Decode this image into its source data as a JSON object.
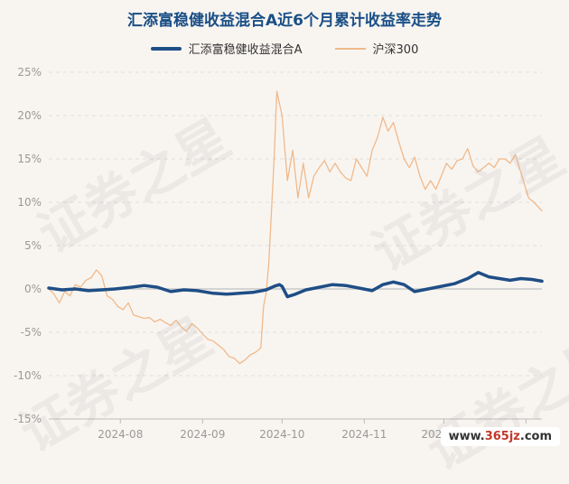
{
  "chart_data": {
    "type": "line",
    "title": "汇添富稳健收益混合A近6个月累计收益率走势",
    "xlabel": "",
    "ylabel": "",
    "ylim": [
      -15,
      25
    ],
    "yticks": [
      25,
      20,
      15,
      10,
      5,
      0,
      -5,
      -10,
      -15
    ],
    "ytick_labels": [
      "25%",
      "20%",
      "15%",
      "10%",
      "5%",
      "0%",
      "-5%",
      "-10%",
      "-15%"
    ],
    "xticks": [
      {
        "date": "2024-08-01",
        "label": "2024-08"
      },
      {
        "date": "2024-09-01",
        "label": "2024-09"
      },
      {
        "date": "2024-10-01",
        "label": "2024-10"
      },
      {
        "date": "2024-11-01",
        "label": "2024-11"
      },
      {
        "date": "2024-12-01",
        "label": "2024-12"
      },
      {
        "date": "2025-01-01",
        "label": "2025-01"
      }
    ],
    "x_range": [
      "2024-07-05",
      "2025-01-07"
    ],
    "grid": "horizontal dashed",
    "legend_position": "top-center",
    "series": [
      {
        "name": "汇添富稳健收益混合A",
        "color": "#1f4e86",
        "points": [
          [
            "2024-07-05",
            0.1
          ],
          [
            "2024-07-10",
            -0.1
          ],
          [
            "2024-07-15",
            0.0
          ],
          [
            "2024-07-20",
            -0.2
          ],
          [
            "2024-07-25",
            -0.1
          ],
          [
            "2024-07-30",
            0.0
          ],
          [
            "2024-08-05",
            0.2
          ],
          [
            "2024-08-10",
            0.4
          ],
          [
            "2024-08-15",
            0.2
          ],
          [
            "2024-08-20",
            -0.3
          ],
          [
            "2024-08-25",
            -0.1
          ],
          [
            "2024-08-30",
            -0.2
          ],
          [
            "2024-09-05",
            -0.5
          ],
          [
            "2024-09-10",
            -0.6
          ],
          [
            "2024-09-15",
            -0.5
          ],
          [
            "2024-09-20",
            -0.4
          ],
          [
            "2024-09-25",
            -0.1
          ],
          [
            "2024-09-28",
            0.3
          ],
          [
            "2024-09-30",
            0.5
          ],
          [
            "2024-10-01",
            0.3
          ],
          [
            "2024-10-03",
            -0.9
          ],
          [
            "2024-10-06",
            -0.6
          ],
          [
            "2024-10-10",
            -0.1
          ],
          [
            "2024-10-15",
            0.2
          ],
          [
            "2024-10-20",
            0.5
          ],
          [
            "2024-10-25",
            0.4
          ],
          [
            "2024-10-30",
            0.1
          ],
          [
            "2024-11-04",
            -0.2
          ],
          [
            "2024-11-08",
            0.5
          ],
          [
            "2024-11-12",
            0.8
          ],
          [
            "2024-11-16",
            0.5
          ],
          [
            "2024-11-20",
            -0.3
          ],
          [
            "2024-11-25",
            0.0
          ],
          [
            "2024-11-30",
            0.3
          ],
          [
            "2024-12-05",
            0.6
          ],
          [
            "2024-12-10",
            1.2
          ],
          [
            "2024-12-14",
            1.9
          ],
          [
            "2024-12-18",
            1.4
          ],
          [
            "2024-12-22",
            1.2
          ],
          [
            "2024-12-26",
            1.0
          ],
          [
            "2024-12-30",
            1.2
          ],
          [
            "2025-01-03",
            1.1
          ],
          [
            "2025-01-07",
            0.9
          ]
        ]
      },
      {
        "name": "沪深300",
        "color": "#f1b98a",
        "points": [
          [
            "2024-07-05",
            0.0
          ],
          [
            "2024-07-07",
            -0.6
          ],
          [
            "2024-07-09",
            -1.6
          ],
          [
            "2024-07-11",
            -0.3
          ],
          [
            "2024-07-13",
            -0.8
          ],
          [
            "2024-07-15",
            0.5
          ],
          [
            "2024-07-17",
            0.2
          ],
          [
            "2024-07-19",
            1.0
          ],
          [
            "2024-07-21",
            1.3
          ],
          [
            "2024-07-23",
            2.2
          ],
          [
            "2024-07-25",
            1.5
          ],
          [
            "2024-07-27",
            -0.8
          ],
          [
            "2024-07-29",
            -1.2
          ],
          [
            "2024-07-31",
            -2.0
          ],
          [
            "2024-08-02",
            -2.4
          ],
          [
            "2024-08-04",
            -1.6
          ],
          [
            "2024-08-06",
            -3.0
          ],
          [
            "2024-08-08",
            -3.2
          ],
          [
            "2024-08-10",
            -3.4
          ],
          [
            "2024-08-12",
            -3.3
          ],
          [
            "2024-08-14",
            -3.8
          ],
          [
            "2024-08-16",
            -3.5
          ],
          [
            "2024-08-18",
            -3.9
          ],
          [
            "2024-08-20",
            -4.2
          ],
          [
            "2024-08-22",
            -3.6
          ],
          [
            "2024-08-24",
            -4.4
          ],
          [
            "2024-08-26",
            -4.9
          ],
          [
            "2024-08-28",
            -4.0
          ],
          [
            "2024-08-30",
            -4.5
          ],
          [
            "2024-09-01",
            -5.2
          ],
          [
            "2024-09-03",
            -5.8
          ],
          [
            "2024-09-05",
            -6.0
          ],
          [
            "2024-09-07",
            -6.5
          ],
          [
            "2024-09-09",
            -7.0
          ],
          [
            "2024-09-11",
            -7.8
          ],
          [
            "2024-09-13",
            -8.0
          ],
          [
            "2024-09-15",
            -8.6
          ],
          [
            "2024-09-17",
            -8.2
          ],
          [
            "2024-09-19",
            -7.6
          ],
          [
            "2024-09-21",
            -7.3
          ],
          [
            "2024-09-23",
            -6.8
          ],
          [
            "2024-09-24",
            -2.0
          ],
          [
            "2024-09-25",
            -0.5
          ],
          [
            "2024-09-26",
            3.0
          ],
          [
            "2024-09-27",
            9.0
          ],
          [
            "2024-09-28",
            15.0
          ],
          [
            "2024-09-29",
            22.8
          ],
          [
            "2024-10-01",
            20.0
          ],
          [
            "2024-10-03",
            12.5
          ],
          [
            "2024-10-05",
            16.0
          ],
          [
            "2024-10-07",
            10.5
          ],
          [
            "2024-10-09",
            14.5
          ],
          [
            "2024-10-11",
            10.5
          ],
          [
            "2024-10-13",
            13.0
          ],
          [
            "2024-10-15",
            14.0
          ],
          [
            "2024-10-17",
            14.8
          ],
          [
            "2024-10-19",
            13.5
          ],
          [
            "2024-10-21",
            14.5
          ],
          [
            "2024-10-23",
            13.5
          ],
          [
            "2024-10-25",
            12.8
          ],
          [
            "2024-10-27",
            12.5
          ],
          [
            "2024-10-29",
            15.0
          ],
          [
            "2024-10-31",
            14.0
          ],
          [
            "2024-11-02",
            13.0
          ],
          [
            "2024-11-04",
            16.0
          ],
          [
            "2024-11-06",
            17.5
          ],
          [
            "2024-11-08",
            19.8
          ],
          [
            "2024-11-10",
            18.2
          ],
          [
            "2024-11-12",
            19.2
          ],
          [
            "2024-11-14",
            17.0
          ],
          [
            "2024-11-16",
            15.0
          ],
          [
            "2024-11-18",
            14.0
          ],
          [
            "2024-11-20",
            15.2
          ],
          [
            "2024-11-22",
            13.0
          ],
          [
            "2024-11-24",
            11.5
          ],
          [
            "2024-11-26",
            12.5
          ],
          [
            "2024-11-28",
            11.5
          ],
          [
            "2024-11-30",
            13.0
          ],
          [
            "2024-12-02",
            14.5
          ],
          [
            "2024-12-04",
            13.8
          ],
          [
            "2024-12-06",
            14.8
          ],
          [
            "2024-12-08",
            15.0
          ],
          [
            "2024-12-10",
            16.2
          ],
          [
            "2024-12-12",
            14.2
          ],
          [
            "2024-12-14",
            13.5
          ],
          [
            "2024-12-16",
            14.0
          ],
          [
            "2024-12-18",
            14.5
          ],
          [
            "2024-12-20",
            14.0
          ],
          [
            "2024-12-22",
            15.0
          ],
          [
            "2024-12-24",
            15.0
          ],
          [
            "2024-12-26",
            14.5
          ],
          [
            "2024-12-28",
            15.5
          ],
          [
            "2024-12-30",
            13.5
          ],
          [
            "2025-01-02",
            10.5
          ],
          [
            "2025-01-04",
            10.0
          ],
          [
            "2025-01-07",
            9.0
          ]
        ]
      }
    ]
  },
  "watermark": {
    "text": "证券之星"
  },
  "site_stamp": {
    "prefix": "www.",
    "main": "365jz",
    "suffix": ".com"
  }
}
